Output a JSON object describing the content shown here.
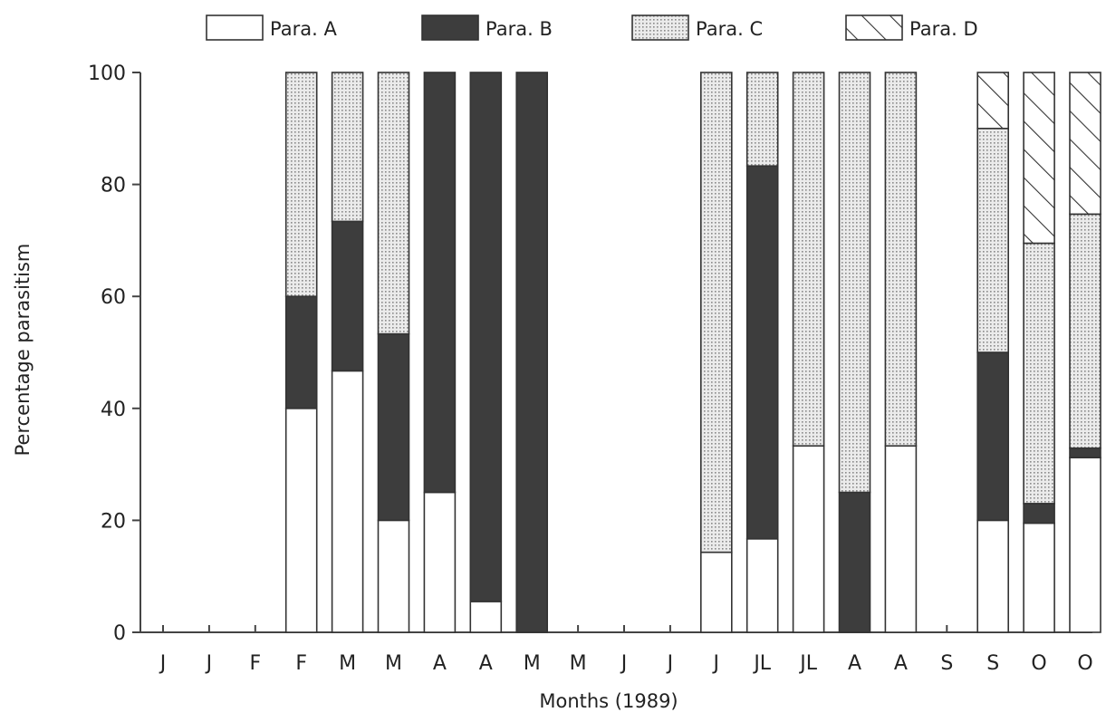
{
  "chart_data": {
    "type": "bar",
    "stacked": true,
    "title": "",
    "xlabel": "Months (1989)",
    "ylabel": "Percentage parasitism",
    "ylim": [
      0,
      100
    ],
    "yticks": [
      "0",
      "20",
      "40",
      "60",
      "80",
      "100"
    ],
    "grid": false,
    "legend_position": "top",
    "categories": [
      "J",
      "J",
      "F",
      "F",
      "M",
      "M",
      "A",
      "A",
      "M",
      "M",
      "J",
      "J",
      "J",
      "JL",
      "JL",
      "A",
      "A",
      "S",
      "S",
      "O",
      "O"
    ],
    "series": [
      {
        "name": "Para. A",
        "pattern": "blank",
        "color": "#ffffff",
        "values": [
          0,
          0,
          0,
          40,
          46.7,
          20,
          25,
          5.5,
          0,
          0,
          0,
          0,
          14.3,
          16.7,
          33.3,
          0,
          33.3,
          0,
          20,
          19.5,
          31.2
        ]
      },
      {
        "name": "Para. B",
        "pattern": "solid",
        "color": "#3d3d3d",
        "values": [
          0,
          0,
          0,
          20,
          26.7,
          33.3,
          75,
          94.5,
          100,
          0,
          0,
          0,
          0,
          66.6,
          0,
          25,
          0,
          0,
          30,
          3.5,
          1.7
        ]
      },
      {
        "name": "Para. C",
        "pattern": "dotted",
        "color": "#dcdcdc",
        "values": [
          0,
          0,
          0,
          40,
          26.6,
          46.7,
          0,
          0,
          0,
          0,
          0,
          0,
          85.7,
          16.7,
          66.7,
          75,
          66.7,
          0,
          40,
          46.5,
          41.8
        ]
      },
      {
        "name": "Para. D",
        "pattern": "hatched",
        "color": "#ffffff",
        "values": [
          0,
          0,
          0,
          0,
          0,
          0,
          0,
          0,
          0,
          0,
          0,
          0,
          0,
          0,
          0,
          0,
          0,
          0,
          10,
          30.5,
          25.3
        ]
      }
    ]
  }
}
